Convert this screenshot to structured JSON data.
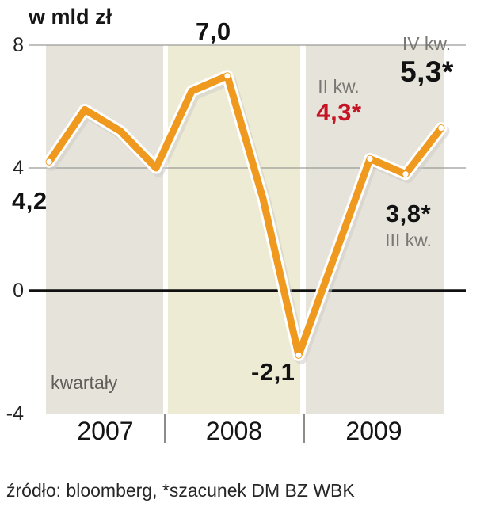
{
  "title": "w mld zł",
  "source_note": "źródło: bloomberg, *szacunek DM BZ WBK",
  "chart_data": {
    "type": "line",
    "title": "w mld zł",
    "unit": "mld zł",
    "x_axis_note": "kwartały",
    "years": [
      "2007",
      "2008",
      "2009"
    ],
    "x": [
      "2007 Q1",
      "2007 Q2",
      "2007 Q3",
      "2007 Q4",
      "2008 Q1",
      "2008 Q2",
      "2008 Q3",
      "2008 Q4",
      "2009 Q1",
      "2009 Q2",
      "2009 Q3",
      "2009 Q4"
    ],
    "values": [
      4.2,
      5.9,
      5.2,
      4.0,
      6.5,
      7.0,
      3.0,
      -2.1,
      1.1,
      4.3,
      3.8,
      5.3
    ],
    "ylim": [
      -4,
      8
    ],
    "yticks": [
      8,
      4,
      0,
      -4
    ],
    "grid": true,
    "line_color": "#f0991f",
    "estimate_color": "#c41425",
    "band_colors": {
      "y2007": "#e5e3da",
      "y2008": "#edebd3",
      "y2009": "#e5e3da"
    },
    "annotations": [
      {
        "text": "4,2",
        "index": 0
      },
      {
        "text": "7,0",
        "index": 5
      },
      {
        "text": "-2,1",
        "index": 7
      },
      {
        "text": "4,3*",
        "index": 9,
        "quarter_label": "II kw.",
        "estimated": true
      },
      {
        "text": "3,8*",
        "index": 10,
        "quarter_label": "III kw.",
        "estimated": true
      },
      {
        "text": "5,3*",
        "index": 11,
        "quarter_label": "IV kw.",
        "estimated": true
      }
    ]
  }
}
